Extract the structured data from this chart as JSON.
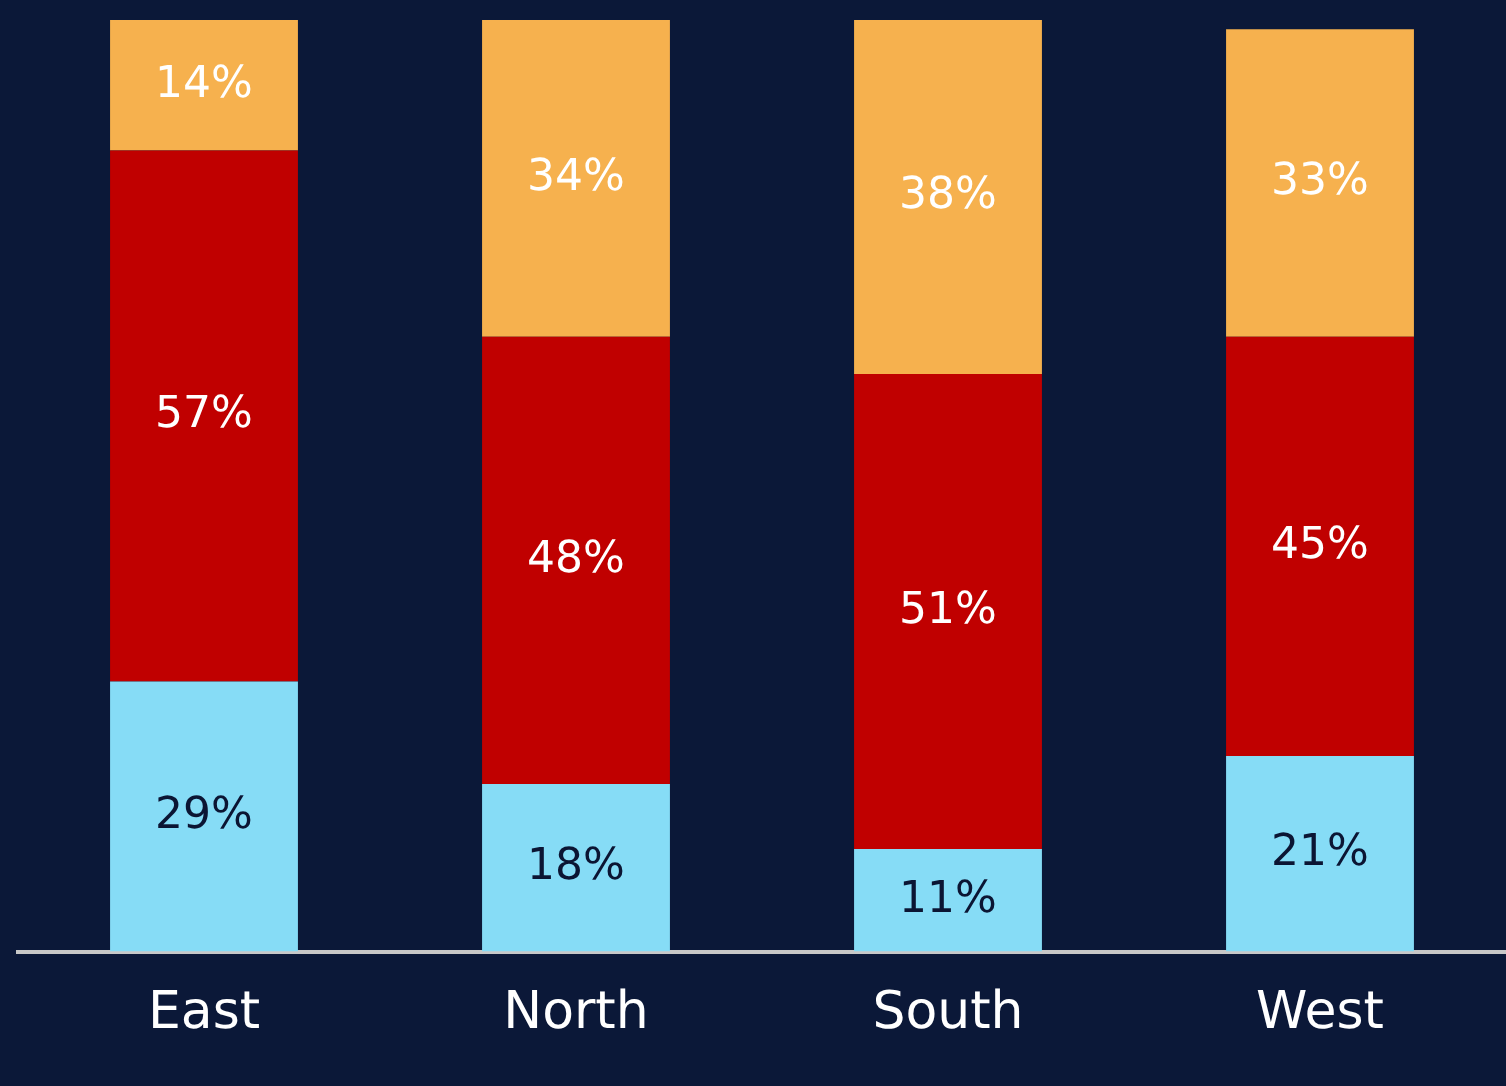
{
  "chart_data": {
    "type": "bar",
    "stacked": true,
    "categories": [
      "East",
      "North",
      "South",
      "West"
    ],
    "series": [
      {
        "color": "#86dcf6",
        "values": [
          29,
          18,
          11,
          21
        ],
        "value_labels": [
          "29%",
          "18%",
          "11%",
          "21%"
        ]
      },
      {
        "color": "#c00000",
        "values": [
          57,
          48,
          51,
          45
        ],
        "value_labels": [
          "57%",
          "48%",
          "51%",
          "45%"
        ]
      },
      {
        "color": "#f6b14e",
        "values": [
          14,
          34,
          38,
          33
        ],
        "value_labels": [
          "14%",
          "34%",
          "38%",
          "33%"
        ]
      }
    ],
    "tick_labels": "x",
    "grid": false,
    "legend": false
  }
}
